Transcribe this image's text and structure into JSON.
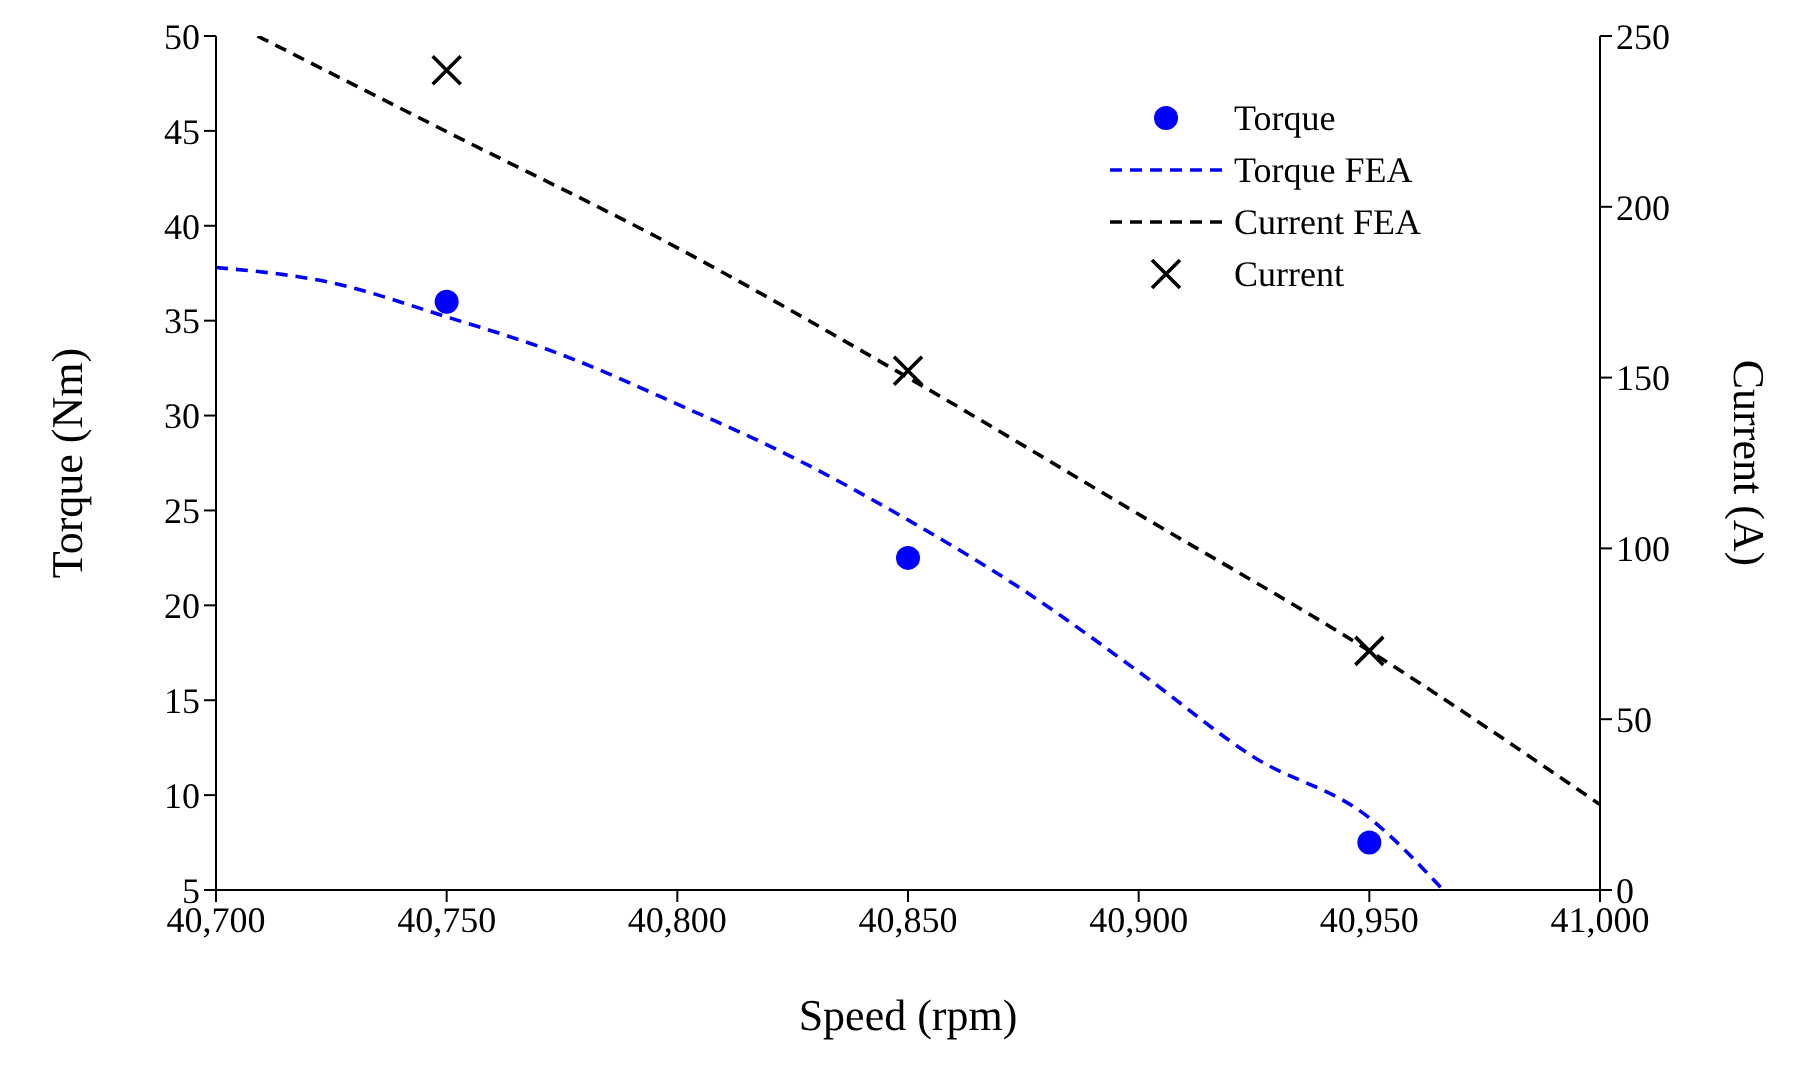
{
  "chart_data": {
    "type": "line",
    "xlabel": "Speed (rpm)",
    "ylabel": "Torque (Nm)",
    "y2label": "Current (A)",
    "xlim": [
      40700,
      41000
    ],
    "xticks": [
      {
        "value": 40700,
        "label": "40,700"
      },
      {
        "value": 40750,
        "label": "40,750"
      },
      {
        "value": 40800,
        "label": "40,800"
      },
      {
        "value": 40850,
        "label": "40,850"
      },
      {
        "value": 40900,
        "label": "40,900"
      },
      {
        "value": 40950,
        "label": "40,950"
      },
      {
        "value": 41000,
        "label": "41,000"
      }
    ],
    "ylim": [
      5,
      50
    ],
    "yticks": [
      5,
      10,
      15,
      20,
      25,
      30,
      35,
      40,
      45,
      50
    ],
    "y2lim": [
      0,
      250
    ],
    "y2ticks": [
      0,
      50,
      100,
      150,
      200,
      250
    ],
    "grid": false,
    "legend": "top right",
    "series": [
      {
        "name": "Torque",
        "type": "scatter",
        "marker": "circle",
        "color": "#0000ff",
        "x": [
          40750,
          40850,
          40950
        ],
        "values": [
          36,
          22.5,
          7.5
        ]
      },
      {
        "name": "Torque FEA",
        "type": "line",
        "line_style": "dashed",
        "marker": "none",
        "color": "#0000ff",
        "x": [
          40700,
          40725,
          40750,
          40775,
          40800,
          40825,
          40850,
          40875,
          40900,
          40925,
          40950,
          40966
        ],
        "values": [
          37.8,
          37,
          35.2,
          33.2,
          30.6,
          27.8,
          24.5,
          20.8,
          16.5,
          12,
          8.8,
          5
        ]
      },
      {
        "name": "Current FEA",
        "type": "line",
        "line_style": "dashed",
        "marker": "none",
        "color": "#000000",
        "axis": "y2",
        "x": [
          40709,
          40750,
          40800,
          40850,
          40900,
          40950,
          41000
        ],
        "values": [
          250,
          222,
          188,
          150,
          110,
          70,
          25
        ]
      },
      {
        "name": "Current",
        "type": "scatter",
        "marker": "cross",
        "color": "#000000",
        "axis": "y2",
        "x": [
          40750,
          40850,
          40950
        ],
        "values": [
          240,
          152,
          70
        ]
      }
    ]
  }
}
